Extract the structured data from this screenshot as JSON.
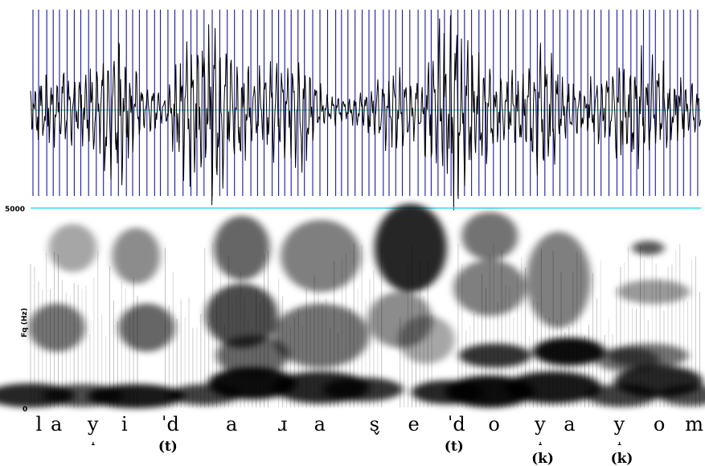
{
  "chart_data": [
    {
      "type": "line",
      "panel": "waveform",
      "title": "",
      "pulse_marks": "blue vertical lines",
      "colors": {
        "waveform": "#000000",
        "pulses": "#1a1aa8",
        "baseline": "#33cccc"
      }
    },
    {
      "type": "heatmap",
      "panel": "spectrogram",
      "title": "",
      "ylabel": "Fq (Hz)",
      "ylim": [
        0,
        5000
      ],
      "yticks": [
        "0",
        "5000"
      ],
      "colors": {
        "ink": "#000000",
        "top_line": "#33ddee"
      },
      "segments": [
        {
          "label": "l",
          "t": 0.01
        },
        {
          "label": "a",
          "t": 0.038
        },
        {
          "label": "y",
          "t": 0.108,
          "diacritic": "˔"
        },
        {
          "label": "i",
          "t": 0.172
        },
        {
          "label": "ˈd",
          "t": 0.248
        },
        {
          "label": "a",
          "t": 0.37
        },
        {
          "label": "ɹ",
          "t": 0.468
        },
        {
          "label": "a",
          "t": 0.537
        },
        {
          "label": "s",
          "t": 0.642,
          "diacritic": "ˇ"
        },
        {
          "label": "e",
          "t": 0.715
        },
        {
          "label": "ˈd",
          "t": 0.79
        },
        {
          "label": "o",
          "t": 0.867
        },
        {
          "label": "y",
          "t": 0.955,
          "diacritic": "˔"
        },
        {
          "label": "a",
          "t": 1.01
        },
        {
          "label": "y",
          "t": 1.105,
          "diacritic": "˔"
        },
        {
          "label": "o",
          "t": 1.18
        },
        {
          "label": "m",
          "t": 1.24
        }
      ],
      "sublabels": [
        {
          "label": "(t)",
          "t": 0.248
        },
        {
          "label": "(t)",
          "t": 0.79
        },
        {
          "label": "(k)",
          "t": 0.955
        },
        {
          "label": "(k)",
          "t": 1.105
        }
      ]
    }
  ]
}
